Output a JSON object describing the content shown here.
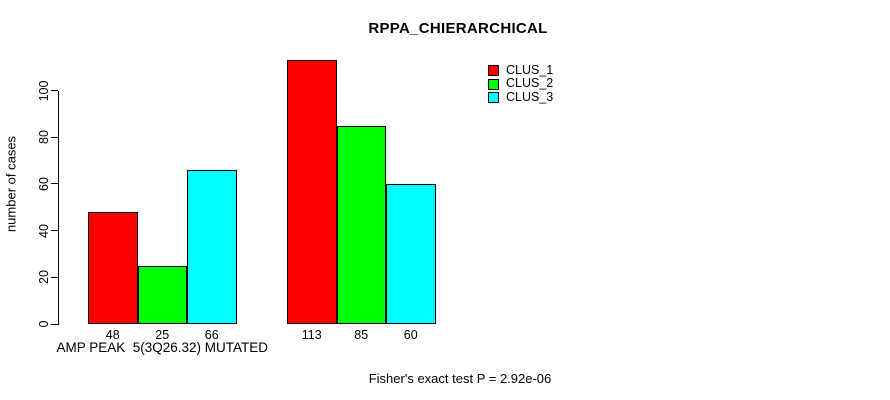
{
  "chart_data": {
    "type": "bar",
    "title": "RPPA_CHIERARCHICAL",
    "ylabel": "number of cases",
    "footnote": "Fisher's exact test P = 2.92e-06",
    "yticks": [
      0,
      20,
      40,
      60,
      80,
      100
    ],
    "ylim": [
      0,
      113
    ],
    "grid": false,
    "legend_position": "top-right",
    "background_color": "#ffffff",
    "axis_color": "#000000",
    "text_color": "#000000",
    "group_labels": [
      "AMP PEAK  5(3Q26.32) MUTATED",
      ""
    ],
    "series": [
      {
        "name": "CLUS_1",
        "color": "#ff0000",
        "values": [
          48,
          113
        ]
      },
      {
        "name": "CLUS_2",
        "color": "#00ff00",
        "values": [
          25,
          85
        ]
      },
      {
        "name": "CLUS_3",
        "color": "#00ffff",
        "values": [
          66,
          60
        ]
      }
    ],
    "bar_value_labels": [
      [
        48,
        25,
        66
      ],
      [
        113,
        85,
        60
      ]
    ]
  }
}
